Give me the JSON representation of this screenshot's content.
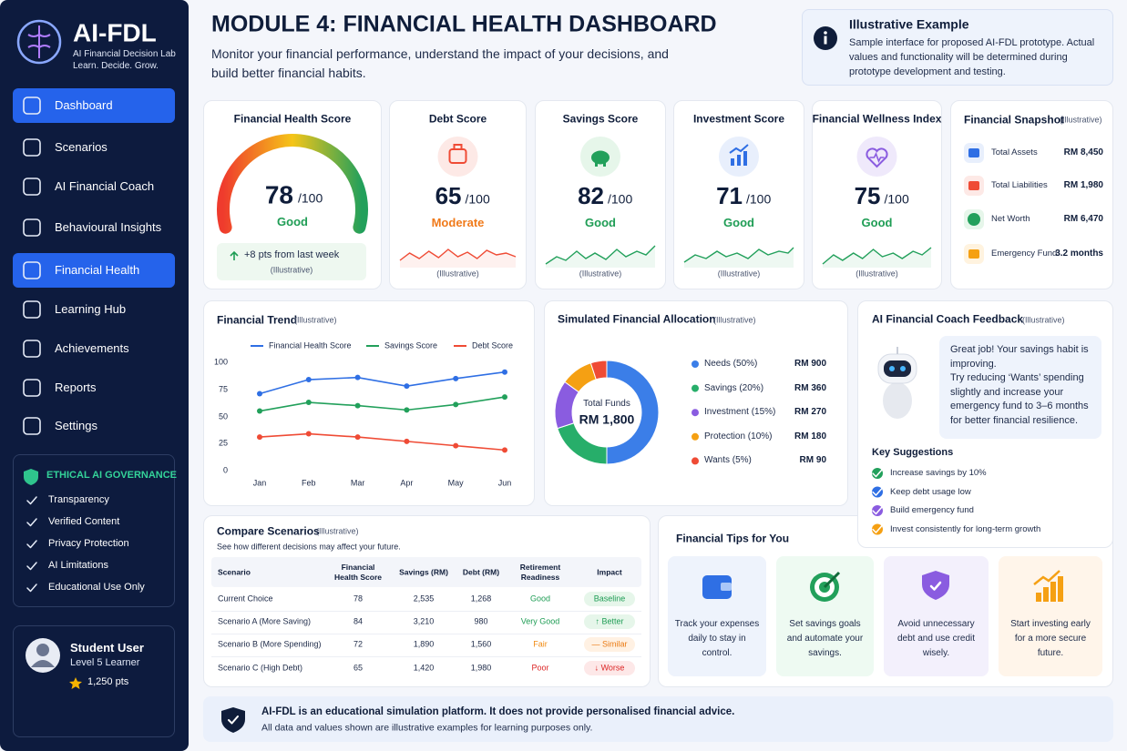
{
  "sidebar": {
    "brand": "AI-FDL",
    "tagline": [
      "AI Financial Decision Lab",
      "Learn. Decide. Grow."
    ],
    "nav": [
      "Dashboard",
      "Scenarios",
      "AI Financial Coach",
      "Behavioural Insights",
      "Financial Health",
      "Learning Hub",
      "Achievements",
      "Reports",
      "Settings"
    ],
    "governance": {
      "title": "ETHICAL AI GOVERNANCE",
      "items": [
        "Transparency",
        "Verified Content",
        "Privacy Protection",
        "AI Limitations",
        "Educational Use Only"
      ]
    },
    "user": {
      "name": "Student User",
      "level": "Level 5 Learner",
      "points": "1,250 pts"
    }
  },
  "header": {
    "title": "MODULE 4: FINANCIAL HEALTH DASHBOARD",
    "subtitle": "Monitor your financial performance, understand the impact of your decisions, and build better financial habits."
  },
  "notice": {
    "title": "Illustrative Example",
    "text": "Sample interface for proposed AI-FDL prototype. Actual values and functionality will be determined during prototype development and testing."
  },
  "health_score": {
    "title": "Financial Health Score",
    "score": 78,
    "max": "/100",
    "status": "Good",
    "change": "+8 pts from last week",
    "note": "(Illustrative)"
  },
  "scores": [
    {
      "title": "Debt Score",
      "score": 65,
      "max": "/100",
      "status": "Moderate",
      "note": "(Illustrative)"
    },
    {
      "title": "Savings Score",
      "score": 82,
      "max": "/100",
      "status": "Good",
      "note": "(Illustrative)"
    },
    {
      "title": "Investment Score",
      "score": 71,
      "max": "/100",
      "status": "Good",
      "note": "(Illustrative)"
    },
    {
      "title": "Financial Wellness Index",
      "score": 75,
      "max": "/100",
      "status": "Good",
      "note": "(Illustrative)"
    }
  ],
  "snapshot": {
    "title": "Financial Snapshot",
    "note": "(Illustrative)",
    "items": [
      {
        "label": "Total Assets",
        "value": "RM 8,450"
      },
      {
        "label": "Total Liabilities",
        "value": "RM 1,980"
      },
      {
        "label": "Net Worth",
        "value": "RM 6,470"
      },
      {
        "label": "Emergency Fund",
        "value": "3.2 months"
      }
    ]
  },
  "chart_data": [
    {
      "type": "line",
      "title": "Financial Trend",
      "note": "(Illustrative)",
      "categories": [
        "Jan",
        "Feb",
        "Mar",
        "Apr",
        "May",
        "Jun"
      ],
      "series": [
        {
          "name": "Financial Health Score",
          "color": "#2f6fe4",
          "values": [
            71,
            84,
            86,
            78,
            85,
            91
          ]
        },
        {
          "name": "Savings Score",
          "color": "#22a05b",
          "values": [
            55,
            63,
            60,
            56,
            61,
            68
          ]
        },
        {
          "name": "Debt Score",
          "color": "#ef4b35",
          "values": [
            31,
            34,
            31,
            27,
            23,
            19
          ]
        }
      ],
      "ylim": [
        0,
        100
      ],
      "yticks": [
        0,
        25,
        50,
        75,
        100
      ]
    },
    {
      "type": "donut",
      "title": "Simulated Financial Allocation",
      "note": "(Illustrative)",
      "center_label": "Total Funds",
      "center_value": "RM 1,800",
      "categories": [
        "Needs (50%)",
        "Savings (20%)",
        "Investment (15%)",
        "Protection (10%)",
        "Wants (5%)"
      ],
      "values": [
        50,
        20,
        15,
        10,
        5
      ],
      "colors": [
        "#3b7ee8",
        "#27ae6a",
        "#8a5ce0",
        "#f5a013",
        "#ef4b35"
      ],
      "amounts": [
        "RM 900",
        "RM 360",
        "RM 270",
        "RM 180",
        "RM 90"
      ]
    }
  ],
  "coach": {
    "title": "AI Financial Coach Feedback",
    "note": "(Illustrative)",
    "message": [
      "Great job! Your savings habit is improving.",
      "Try reducing ‘Wants’ spending slightly and increase your emergency fund to 3–6 months for better financial resilience."
    ],
    "suggestions_title": "Key Suggestions",
    "suggestions": [
      "Increase savings by 10%",
      "Keep debt usage low",
      "Build emergency fund",
      "Invest consistently for long-term growth"
    ]
  },
  "compare": {
    "title": "Compare Scenarios",
    "note": "(Illustrative)",
    "subtitle": "See how different decisions may affect your future.",
    "headers": [
      "Scenario",
      "Financial Health Score",
      "Savings (RM)",
      "Debt (RM)",
      "Retirement Readiness",
      "Impact"
    ],
    "rows": [
      [
        "Current Choice",
        "78",
        "2,535",
        "1,268",
        "Good",
        "Baseline"
      ],
      [
        "Scenario A (More Saving)",
        "84",
        "3,210",
        "980",
        "Very Good",
        "↑ Better"
      ],
      [
        "Scenario B (More Spending)",
        "72",
        "1,890",
        "1,560",
        "Fair",
        "— Similar"
      ],
      [
        "Scenario C (High Debt)",
        "65",
        "1,420",
        "1,980",
        "Poor",
        "↓ Worse"
      ]
    ]
  },
  "tips": {
    "title": "Financial Tips for You",
    "items": [
      "Track your expenses daily to stay in control.",
      "Set savings goals and automate your savings.",
      "Avoid unnecessary debt and use credit wisely.",
      "Start investing early for a more secure future."
    ]
  },
  "footer": {
    "title": "AI-FDL is an educational simulation platform. It does not provide personalised financial advice.",
    "text": "All data and values shown are illustrative examples for learning purposes only."
  }
}
